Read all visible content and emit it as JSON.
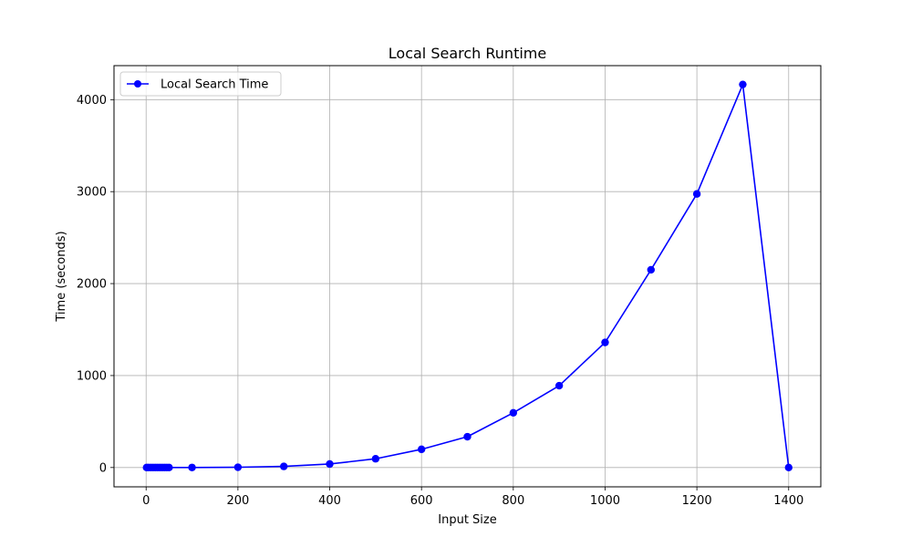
{
  "chart_data": {
    "type": "line",
    "title": "Local Search Runtime",
    "xlabel": "Input Size",
    "ylabel": "Time (seconds)",
    "xlim": [
      -70,
      1470
    ],
    "ylim": [
      -210,
      4370
    ],
    "xticks": [
      0,
      200,
      400,
      600,
      800,
      1000,
      1200,
      1400
    ],
    "yticks": [
      0,
      1000,
      2000,
      3000,
      4000
    ],
    "grid": true,
    "legend_position": "top-left",
    "series": [
      {
        "name": "Local Search Time",
        "color": "#0000ff",
        "marker": "circle",
        "x": [
          1,
          5,
          10,
          15,
          20,
          25,
          30,
          35,
          40,
          45,
          50,
          100,
          200,
          300,
          400,
          500,
          600,
          700,
          800,
          900,
          1000,
          1100,
          1200,
          1300,
          1400
        ],
        "y": [
          0,
          0,
          0,
          0,
          0,
          0,
          0,
          0,
          0,
          0,
          0,
          0.5,
          3,
          12,
          38,
          95,
          198,
          335,
          595,
          890,
          1360,
          2150,
          2975,
          4165,
          0
        ]
      }
    ]
  }
}
